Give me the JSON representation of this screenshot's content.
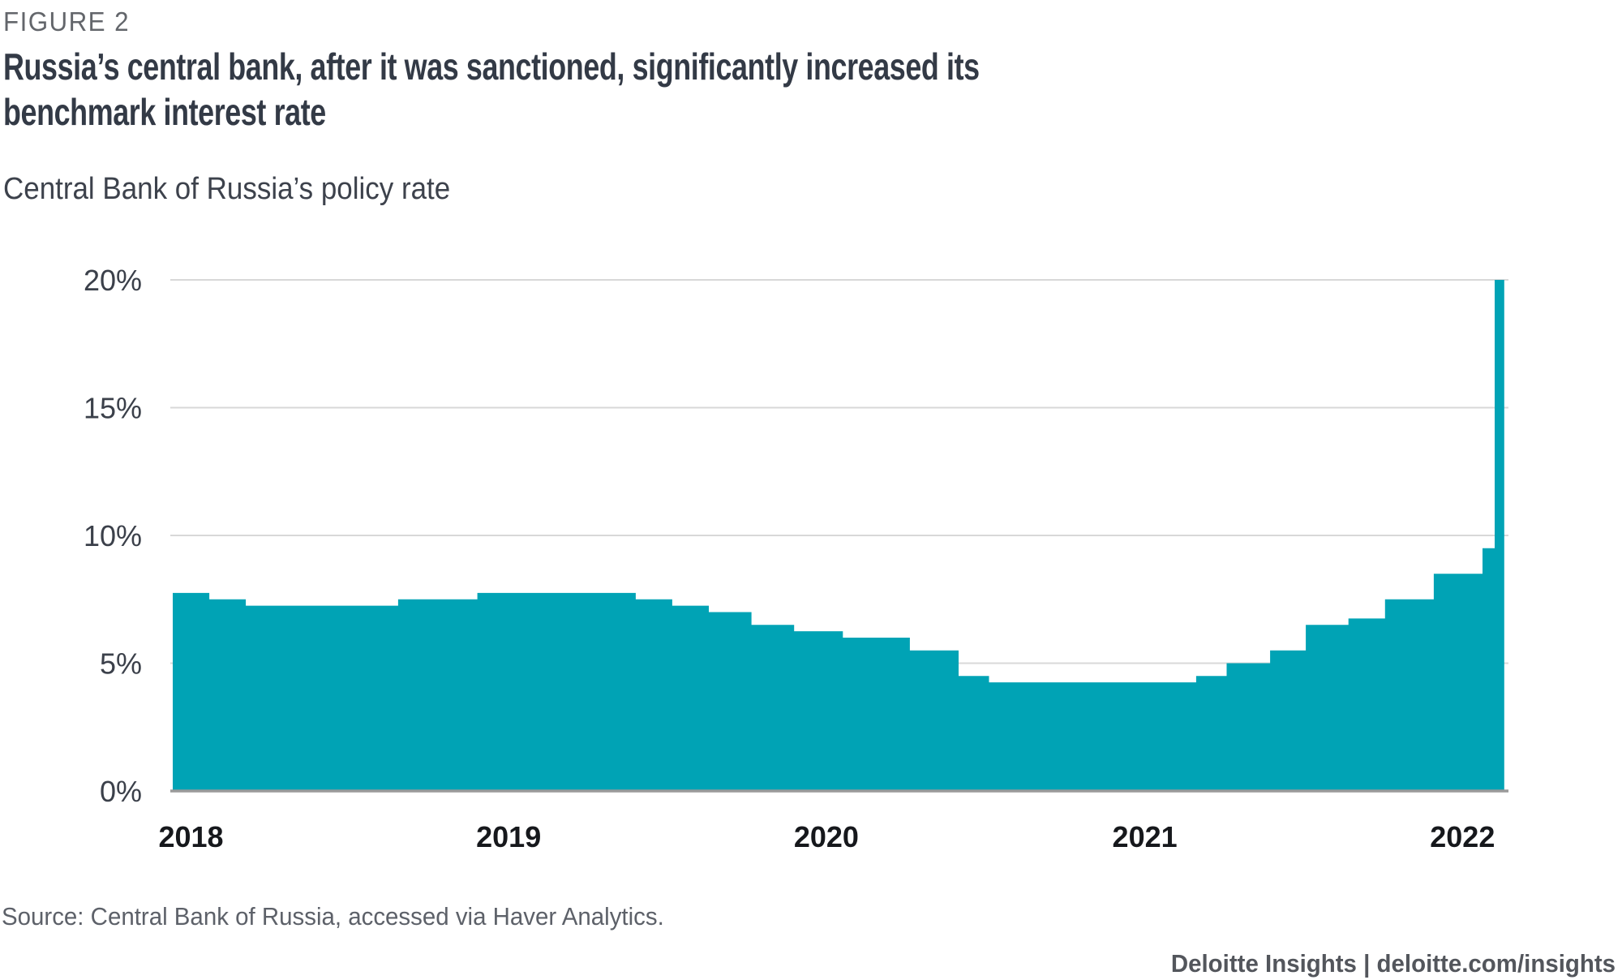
{
  "figure_label": "FIGURE 2",
  "title_lines": [
    "Russia’s central bank, after it was sanctioned, significantly increased its",
    "benchmark interest rate"
  ],
  "subtitle": "Central Bank of Russia’s policy rate",
  "source": "Source: Central Bank of Russia, accessed via Haver Analytics.",
  "footer_brand": "Deloitte Insights | deloitte.com/insights",
  "colors": {
    "area": "#00a3b5",
    "gridline": "#d8d8d8",
    "axis_line": "#9a9a9a",
    "title_text": "#333a46",
    "muted_text": "#63666b"
  },
  "chart_data": {
    "type": "area",
    "title": "Central Bank of Russia’s policy rate",
    "xlabel": "",
    "ylabel": "",
    "unit": "percent",
    "ylim": [
      0,
      20
    ],
    "grid": "horizontal",
    "legend": "none",
    "x_range": [
      "2018-01-01",
      "2022-03-11"
    ],
    "yticks": [
      {
        "label": "0%",
        "value": 0
      },
      {
        "label": "5%",
        "value": 5
      },
      {
        "label": "10%",
        "value": 10
      },
      {
        "label": "15%",
        "value": 15
      },
      {
        "label": "20%",
        "value": 20
      }
    ],
    "xticks": [
      "2018",
      "2019",
      "2020",
      "2021",
      "2022"
    ],
    "series": [
      {
        "name": "Central Bank of Russia policy rate (%)",
        "style": "step-area",
        "end_date": "2022-03-11",
        "step_points": [
          {
            "date": "2018-01-01",
            "rate": 7.75
          },
          {
            "date": "2018-02-12",
            "rate": 7.5
          },
          {
            "date": "2018-03-26",
            "rate": 7.25
          },
          {
            "date": "2018-09-17",
            "rate": 7.5
          },
          {
            "date": "2018-12-17",
            "rate": 7.75
          },
          {
            "date": "2019-06-17",
            "rate": 7.5
          },
          {
            "date": "2019-07-29",
            "rate": 7.25
          },
          {
            "date": "2019-09-09",
            "rate": 7.0
          },
          {
            "date": "2019-10-28",
            "rate": 6.5
          },
          {
            "date": "2019-12-16",
            "rate": 6.25
          },
          {
            "date": "2020-02-10",
            "rate": 6.0
          },
          {
            "date": "2020-04-27",
            "rate": 5.5
          },
          {
            "date": "2020-06-22",
            "rate": 4.5
          },
          {
            "date": "2020-07-27",
            "rate": 4.25
          },
          {
            "date": "2021-03-22",
            "rate": 4.5
          },
          {
            "date": "2021-04-26",
            "rate": 5.0
          },
          {
            "date": "2021-06-15",
            "rate": 5.5
          },
          {
            "date": "2021-07-26",
            "rate": 6.5
          },
          {
            "date": "2021-09-13",
            "rate": 6.75
          },
          {
            "date": "2021-10-25",
            "rate": 7.5
          },
          {
            "date": "2021-12-20",
            "rate": 8.5
          },
          {
            "date": "2022-02-14",
            "rate": 9.5
          },
          {
            "date": "2022-02-28",
            "rate": 20.0
          }
        ]
      }
    ]
  }
}
